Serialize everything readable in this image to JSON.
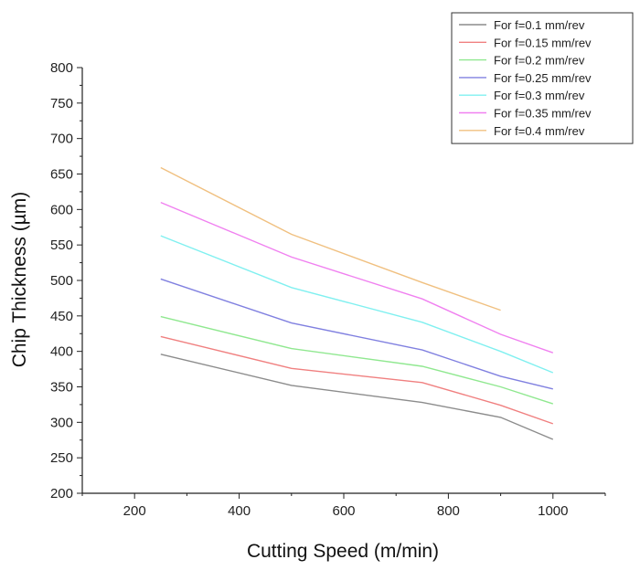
{
  "chart_data": {
    "type": "line",
    "title": "",
    "xlabel": "Cutting Speed (m/min)",
    "ylabel": "Chip Thickness (µm)",
    "xlim": [
      100,
      1100
    ],
    "ylim": [
      200,
      800
    ],
    "xticks": [
      200,
      400,
      600,
      800,
      1000
    ],
    "yticks": [
      200,
      250,
      300,
      350,
      400,
      450,
      500,
      550,
      600,
      650,
      700,
      750,
      800
    ],
    "grid": false,
    "legend_position": "top-right",
    "series": [
      {
        "name": "For f=0.1 mm/rev",
        "color": "#8c8c8c",
        "x": [
          250,
          500,
          750,
          900,
          1000
        ],
        "y": [
          396,
          352,
          328,
          307,
          276
        ]
      },
      {
        "name": "For f=0.15 mm/rev",
        "color": "#f08080",
        "x": [
          250,
          500,
          750,
          900,
          1000
        ],
        "y": [
          421,
          376,
          356,
          324,
          298
        ]
      },
      {
        "name": "For f=0.2 mm/rev",
        "color": "#90e890",
        "x": [
          250,
          500,
          750,
          900,
          1000
        ],
        "y": [
          449,
          404,
          379,
          350,
          326
        ]
      },
      {
        "name": "For f=0.25 mm/rev",
        "color": "#8080e0",
        "x": [
          250,
          500,
          750,
          900,
          1000
        ],
        "y": [
          502,
          440,
          402,
          365,
          347
        ]
      },
      {
        "name": "For f=0.3 mm/rev",
        "color": "#80f0f0",
        "x": [
          250,
          500,
          750,
          900,
          1000
        ],
        "y": [
          563,
          490,
          441,
          400,
          370
        ]
      },
      {
        "name": "For f=0.35 mm/rev",
        "color": "#f080f0",
        "x": [
          250,
          500,
          750,
          900,
          1000
        ],
        "y": [
          610,
          533,
          474,
          424,
          398
        ]
      },
      {
        "name": "For f=0.4 mm/rev",
        "color": "#f0c080",
        "x": [
          250,
          500,
          750,
          900
        ],
        "y": [
          659,
          565,
          497,
          458
        ]
      }
    ]
  }
}
